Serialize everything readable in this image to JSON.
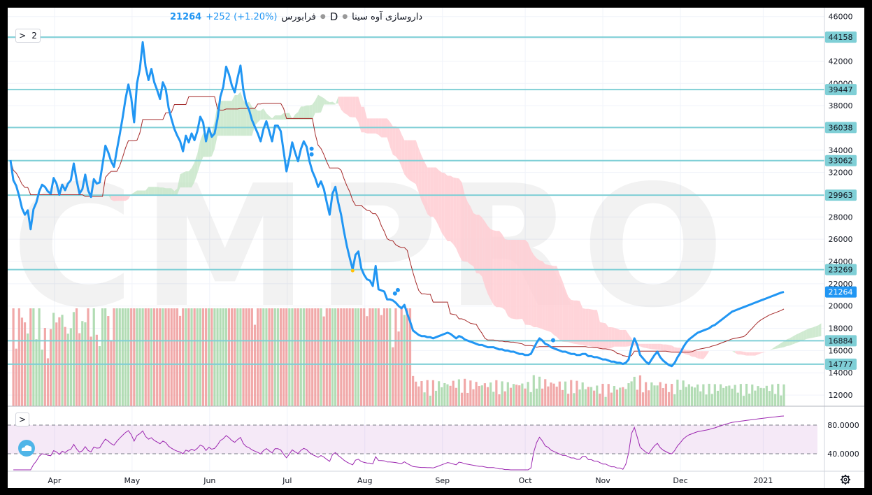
{
  "legend": {
    "price": "21264",
    "change": "+252 (+1.20%)",
    "exchange": "فرابورس",
    "interval": "D",
    "symbol": "داروسازی آوه سینا"
  },
  "indicators_button": {
    "chevron": ">",
    "count": "2"
  },
  "rsi_button": {
    "chevron": ">"
  },
  "watermark": "CMPRO",
  "icons": {
    "settings": "gear-icon",
    "logo": "cloud-logo-icon"
  },
  "colors": {
    "price_line": "#2196f3",
    "kijun": "#a52a2a",
    "hlines": "#7fcfd6",
    "cloud_bull": "#c8e6c9",
    "cloud_bear": "#ffcdd2",
    "vol_up": "#a5d6a7",
    "vol_down": "#ef9a9a",
    "rsi": "#9c27b0"
  },
  "chart_data": [
    {
      "type": "line",
      "x_labels": [
        "Apr",
        "May",
        "Jun",
        "Jul",
        "Aug",
        "Sep",
        "Oct",
        "Nov",
        "Dec",
        "2021"
      ],
      "x_label_day": [
        17,
        47,
        77,
        107,
        137,
        167,
        199,
        229,
        259,
        291
      ],
      "y_ticks": [
        12000,
        14000,
        16000,
        18000,
        20000,
        22000,
        24000,
        26000,
        28000,
        30000,
        32000,
        34000,
        36000,
        38000,
        40000,
        42000,
        44000,
        46000
      ],
      "ylim": [
        11000,
        46800
      ],
      "last_price_label": "21264",
      "horizontal_levels": [
        44158,
        39447,
        36038,
        33062,
        29963,
        23269,
        16884,
        14777
      ],
      "series": [
        {
          "role": "close",
          "values": [
            33100,
            31300,
            30800,
            29900,
            28800,
            28200,
            28600,
            26900,
            28700,
            29300,
            30300,
            30900,
            30700,
            30300,
            30100,
            31500,
            31000,
            30000,
            30900,
            30400,
            31000,
            31300,
            32800,
            31300,
            30100,
            30500,
            31800,
            30400,
            29800,
            31400,
            31000,
            31100,
            32700,
            34400,
            33800,
            33000,
            32500,
            34000,
            35400,
            36900,
            38600,
            39900,
            38700,
            36500,
            40000,
            41300,
            43700,
            41500,
            40300,
            41300,
            40100,
            39400,
            38600,
            40100,
            39500,
            37800,
            36800,
            35900,
            35300,
            34800,
            33900,
            35300,
            34700,
            35500,
            34900,
            35700,
            37000,
            36500,
            34800,
            36000,
            35200,
            35500,
            36800,
            38800,
            39700,
            41500,
            40800,
            39800,
            39200,
            40500,
            41600,
            39400,
            38200,
            37600,
            36700,
            36100,
            35500,
            34800,
            35900,
            36600,
            35700,
            34800,
            36200,
            36200,
            35700,
            33900,
            32100,
            33300,
            34700,
            33800,
            33000,
            34100,
            34800,
            34300,
            33000,
            32100,
            31500,
            30700,
            31200,
            30500,
            29300,
            28200,
            30100,
            30700,
            29300,
            28200,
            26700,
            25400,
            24300,
            23300,
            24600,
            24900,
            23400,
            22800,
            22400,
            22300,
            21800,
            23600,
            21500,
            21400,
            21300,
            20600,
            20600,
            20500,
            20300,
            20000,
            19800,
            20100,
            19300,
            18600,
            17800,
            17600,
            17400,
            17300,
            17300,
            17200,
            17200,
            17100,
            17200,
            17300,
            17400,
            17500,
            17600,
            17500,
            17300,
            17100,
            17300,
            17200,
            17000,
            16900,
            16800,
            16700,
            16600,
            16500,
            16500,
            16400,
            16300,
            16300,
            16300,
            16200,
            16100,
            16100,
            16000,
            16000,
            15900,
            15900,
            15800,
            15700,
            15700,
            15600,
            15600,
            15700,
            16200,
            16700,
            17100,
            16900,
            16600,
            16500,
            16300,
            16200,
            16100,
            16000,
            15900,
            15900,
            15800,
            15700,
            15700,
            15600,
            15600,
            15700,
            15700,
            15500,
            15500,
            15400,
            15400,
            15300,
            15200,
            15200,
            15100,
            15000,
            15000,
            14900,
            14900,
            14800,
            14900,
            15200,
            16300,
            17100,
            16500,
            15600,
            15300,
            15000,
            14800,
            15200,
            15600,
            15900,
            15400,
            15100,
            14900,
            14700,
            14600,
            14900,
            15400,
            15800,
            16300,
            16700,
            17000,
            17200,
            17400,
            17600,
            17700,
            17800,
            17900,
            18000,
            18200,
            18300,
            18500,
            18700,
            18900,
            19100,
            19300,
            19500,
            19600,
            19700,
            19800,
            19900,
            20000,
            20100,
            20200,
            20300,
            20400,
            20500,
            20600,
            20700,
            20800,
            20900,
            21000,
            21100,
            21200,
            21264
          ]
        }
      ]
    }
  ]
}
